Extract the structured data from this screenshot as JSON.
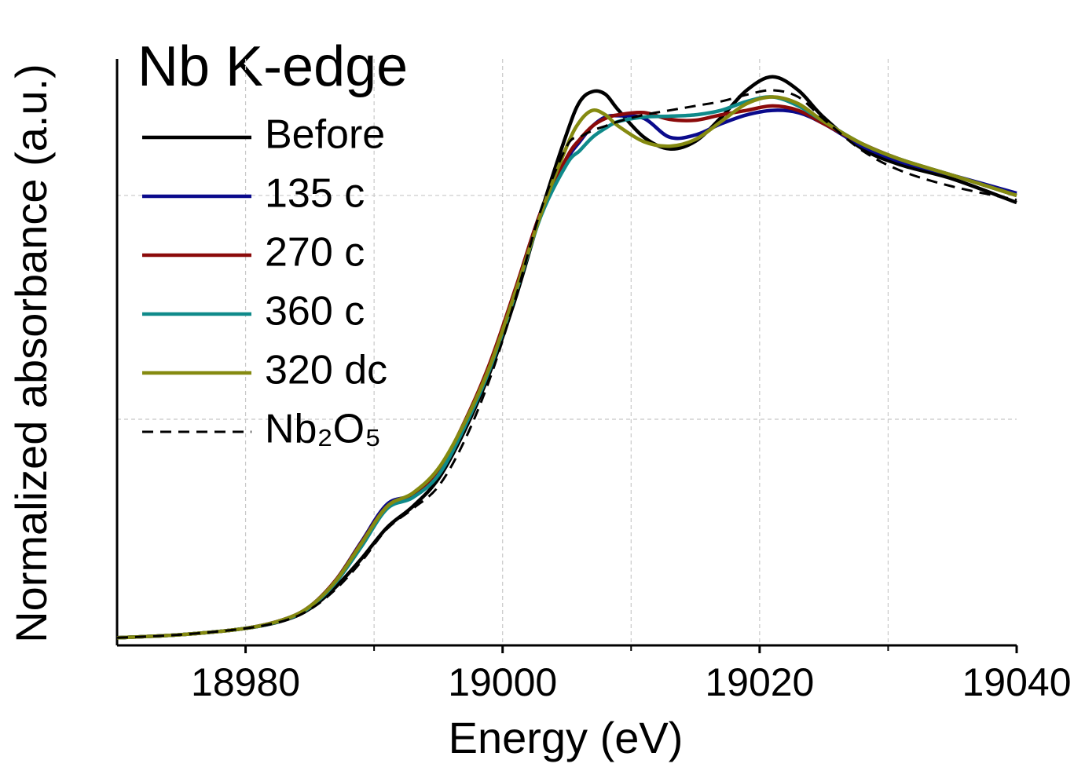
{
  "chart_data": {
    "type": "line",
    "title": "Nb K-edge",
    "x_label": "Energy (eV)",
    "y_label": "Normalized absorbance (a.u.)",
    "x": [
      18970,
      18975,
      18980,
      18983,
      18985,
      18987,
      18989,
      18991,
      18993,
      18995,
      18997,
      18999,
      19001,
      19003,
      19005,
      19006,
      19007,
      19008,
      19009,
      19011,
      19013,
      19015,
      19017,
      19019,
      19021,
      19023,
      19025,
      19028,
      19031,
      19035,
      19040
    ],
    "series": [
      {
        "name": "Before",
        "color": "#000000",
        "style": "solid",
        "values": [
          0.012,
          0.019,
          0.033,
          0.051,
          0.077,
          0.125,
          0.188,
          0.258,
          0.305,
          0.367,
          0.472,
          0.604,
          0.77,
          0.963,
          1.139,
          1.209,
          1.232,
          1.226,
          1.191,
          1.13,
          1.104,
          1.121,
          1.174,
          1.235,
          1.265,
          1.235,
          1.174,
          1.104,
          1.068,
          1.037,
          0.984
        ]
      },
      {
        "name": "135 c",
        "color": "#0a0a8c",
        "style": "solid",
        "values": [
          0.012,
          0.019,
          0.033,
          0.053,
          0.082,
          0.14,
          0.226,
          0.31,
          0.332,
          0.385,
          0.49,
          0.62,
          0.79,
          0.965,
          1.08,
          1.12,
          1.155,
          1.175,
          1.178,
          1.172,
          1.13,
          1.135,
          1.16,
          1.18,
          1.19,
          1.185,
          1.16,
          1.11,
          1.075,
          1.045,
          1.005
        ]
      },
      {
        "name": "270 c",
        "color": "#8b0a0a",
        "style": "solid",
        "values": [
          0.012,
          0.019,
          0.033,
          0.053,
          0.082,
          0.14,
          0.224,
          0.305,
          0.33,
          0.385,
          0.492,
          0.625,
          0.792,
          0.965,
          1.085,
          1.125,
          1.155,
          1.172,
          1.18,
          1.185,
          1.17,
          1.168,
          1.18,
          1.19,
          1.2,
          1.19,
          1.16,
          1.115,
          1.08,
          1.045,
          1.0
        ]
      },
      {
        "name": "360 c",
        "color": "#0f8a8a",
        "style": "solid",
        "values": [
          0.012,
          0.019,
          0.033,
          0.052,
          0.08,
          0.135,
          0.215,
          0.3,
          0.325,
          0.375,
          0.48,
          0.612,
          0.78,
          0.955,
          1.07,
          1.1,
          1.13,
          1.15,
          1.165,
          1.175,
          1.177,
          1.18,
          1.19,
          1.21,
          1.22,
          1.2,
          1.165,
          1.115,
          1.08,
          1.045,
          1.0
        ]
      },
      {
        "name": "320 dc",
        "color": "#858a10",
        "style": "solid",
        "values": [
          0.012,
          0.019,
          0.033,
          0.053,
          0.082,
          0.138,
          0.222,
          0.305,
          0.335,
          0.39,
          0.49,
          0.618,
          0.785,
          0.96,
          1.11,
          1.165,
          1.19,
          1.18,
          1.155,
          1.12,
          1.11,
          1.125,
          1.165,
          1.205,
          1.22,
          1.205,
          1.165,
          1.115,
          1.08,
          1.045,
          1.0
        ]
      },
      {
        "name": "Nb₂O₅",
        "color": "#000000",
        "style": "dashed",
        "values": [
          0.012,
          0.019,
          0.033,
          0.05,
          0.075,
          0.12,
          0.182,
          0.255,
          0.3,
          0.35,
          0.45,
          0.59,
          0.77,
          0.97,
          1.11,
          1.13,
          1.145,
          1.155,
          1.165,
          1.18,
          1.19,
          1.2,
          1.21,
          1.225,
          1.235,
          1.22,
          1.17,
          1.1,
          1.055,
          1.02,
          0.99
        ]
      }
    ],
    "xlim": [
      18970,
      19040
    ],
    "ylim": [
      -0.005,
      1.305
    ],
    "xticks": [
      18980,
      19000,
      19020,
      19040
    ],
    "xgrid": [
      18980,
      18990,
      19000,
      19010,
      19020,
      19030
    ],
    "xminor": [
      18990,
      19010,
      19030
    ],
    "ygrid": [
      0.5,
      1.0
    ],
    "grid": true
  }
}
